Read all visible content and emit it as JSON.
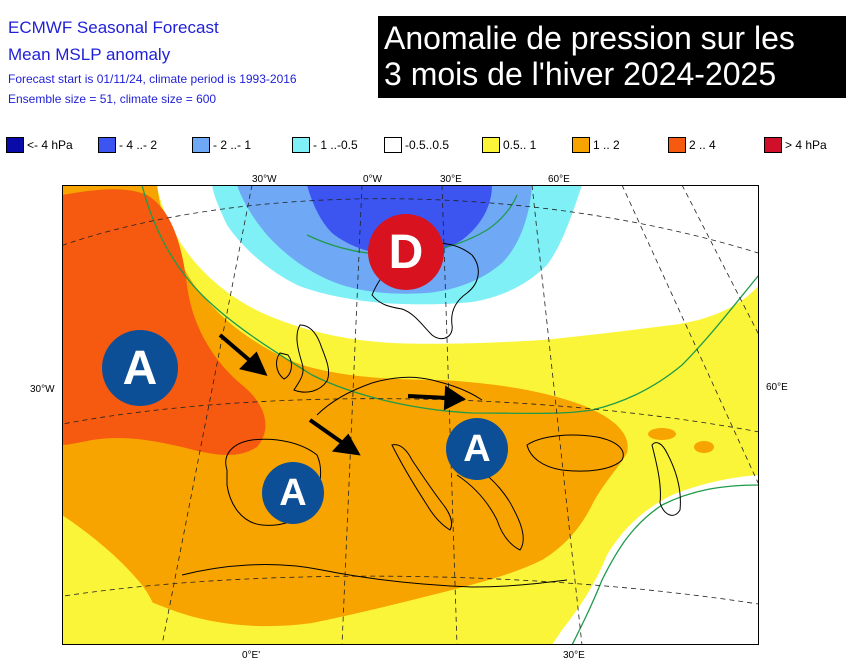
{
  "header": {
    "line1": "ECMWF Seasonal Forecast",
    "line2": "Mean MSLP anomaly",
    "line3": "Forecast start is 01/11/24, climate period is 1993-2016",
    "line4": "Ensemble size = 51, climate size = 600"
  },
  "banner": {
    "line1": "Anomalie de pression sur les",
    "line2": "3 mois de l'hiver 2024-2025"
  },
  "legend": [
    {
      "label": "<- 4 hPa",
      "color": "#0a0aa8"
    },
    {
      "label": "- 4 ..- 2",
      "color": "#3c55f0"
    },
    {
      "label": "- 2 ..- 1",
      "color": "#6fa8f5"
    },
    {
      "label": "- 1 ..-0.5",
      "color": "#7ff0f5"
    },
    {
      "label": "-0.5..0.5",
      "color": "#ffffff"
    },
    {
      "label": "0.5.. 1",
      "color": "#fbf53a"
    },
    {
      "label": "1 .. 2",
      "color": "#f7a300"
    },
    {
      "label": "2 .. 4",
      "color": "#f55a10"
    },
    {
      "label": "> 4 hPa",
      "color": "#d0102a"
    }
  ],
  "coords": {
    "top": [
      "30°W",
      "0°W",
      "30°E",
      "60°E"
    ],
    "left": "30°W",
    "right": "60°E",
    "bottom": [
      "0°E'",
      "30°E"
    ]
  },
  "markers": {
    "high": "A",
    "low": "D"
  }
}
